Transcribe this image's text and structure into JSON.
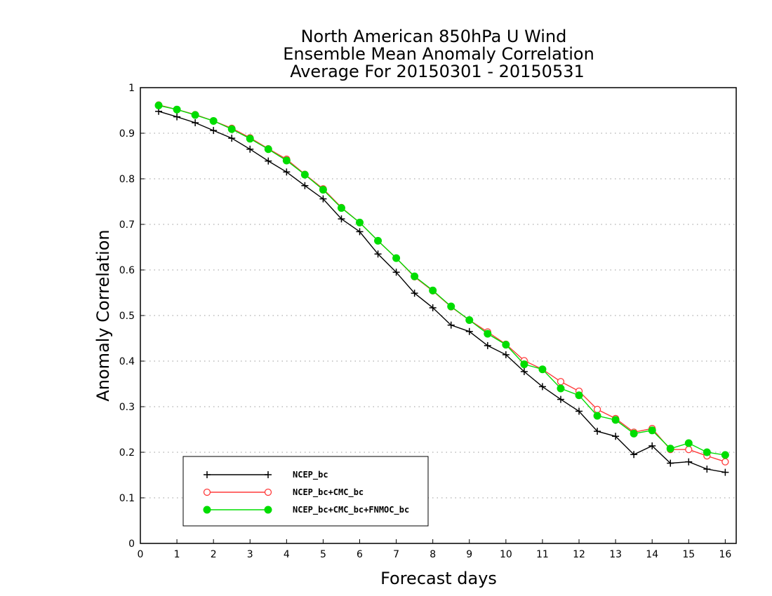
{
  "chart_data": {
    "type": "line",
    "title_lines": [
      "North American 850hPa U Wind",
      "Ensemble Mean Anomaly Correlation",
      "Average For 20150301 - 20150531"
    ],
    "xlabel": "Forecast days",
    "ylabel": "Anomaly Correlation",
    "xlim": [
      0,
      16.3
    ],
    "ylim": [
      0,
      1
    ],
    "xticks": [
      "0",
      "1",
      "2",
      "3",
      "4",
      "5",
      "6",
      "7",
      "8",
      "9",
      "10",
      "11",
      "12",
      "13",
      "14",
      "15",
      "16"
    ],
    "yticks": [
      "0",
      "0.1",
      "0.2",
      "0.3",
      "0.4",
      "0.5",
      "0.6",
      "0.7",
      "0.8",
      "0.9",
      "1"
    ],
    "grid": "horizontal dotted",
    "legend_position": "bottom-left",
    "x": [
      0.5,
      1,
      1.5,
      2,
      2.5,
      3,
      3.5,
      4,
      4.5,
      5,
      5.5,
      6,
      6.5,
      7,
      7.5,
      8,
      8.5,
      9,
      9.5,
      10,
      10.5,
      11,
      11.5,
      12,
      12.5,
      13,
      13.5,
      14,
      14.5,
      15,
      15.5,
      16
    ],
    "series": [
      {
        "name": "NCEP_bc",
        "color": "#000000",
        "marker": "plus",
        "values": [
          0.948,
          0.936,
          0.923,
          0.906,
          0.889,
          0.865,
          0.839,
          0.815,
          0.785,
          0.756,
          0.712,
          0.684,
          0.635,
          0.595,
          0.549,
          0.517,
          0.479,
          0.465,
          0.434,
          0.414,
          0.377,
          0.344,
          0.316,
          0.29,
          0.246,
          0.235,
          0.195,
          0.214,
          0.176,
          0.179,
          0.163,
          0.156
        ]
      },
      {
        "name": "NCEP_bc+CMC_bc",
        "color": "#ff3a3a",
        "marker": "open-circle",
        "values": [
          0.962,
          0.952,
          0.941,
          0.927,
          0.911,
          0.89,
          0.866,
          0.843,
          0.81,
          0.778,
          0.737,
          0.704,
          0.664,
          0.626,
          0.585,
          0.554,
          0.519,
          0.49,
          0.464,
          0.437,
          0.401,
          0.382,
          0.355,
          0.334,
          0.294,
          0.274,
          0.244,
          0.252,
          0.206,
          0.206,
          0.192,
          0.179
        ]
      },
      {
        "name": "NCEP_bc+CMC_bc+FNMOC_bc",
        "color": "#00dd00",
        "marker": "filled-circle",
        "values": [
          0.961,
          0.952,
          0.94,
          0.927,
          0.909,
          0.888,
          0.865,
          0.84,
          0.809,
          0.776,
          0.736,
          0.704,
          0.664,
          0.626,
          0.586,
          0.555,
          0.52,
          0.49,
          0.46,
          0.436,
          0.393,
          0.382,
          0.34,
          0.325,
          0.28,
          0.271,
          0.241,
          0.248,
          0.208,
          0.22,
          0.2,
          0.194
        ]
      }
    ]
  }
}
